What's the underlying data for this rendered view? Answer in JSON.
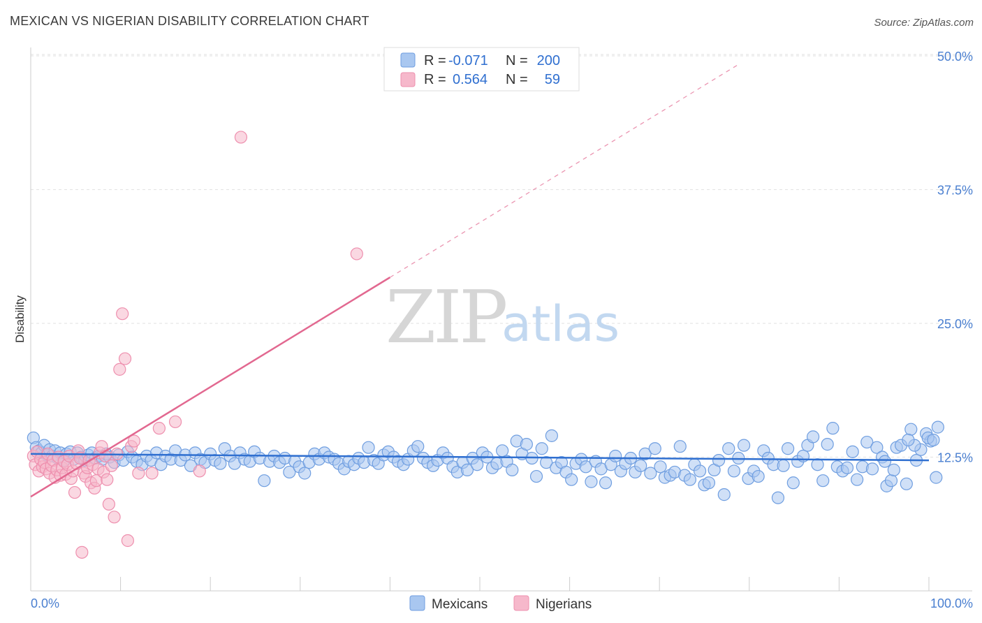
{
  "header": {
    "title": "MEXICAN VS NIGERIAN DISABILITY CORRELATION CHART",
    "source": "Source: ZipAtlas.com"
  },
  "watermark": {
    "part1": "ZIP",
    "part2": "atlas"
  },
  "colors": {
    "mexicans_fill": "#a9c7f0",
    "mexicans_stroke": "#6f9ee0",
    "mexicans_line": "#2f6fd0",
    "nigerians_fill": "#f6b8cb",
    "nigerians_stroke": "#ee8fae",
    "nigerians_line": "#e26890"
  },
  "legend": {
    "rows": [
      {
        "r_label": "R = ",
        "r_value": "-0.071",
        "n_label": "N = ",
        "n_value": "200"
      },
      {
        "r_label": "R = ",
        "r_value": "0.564",
        "n_label": "N = ",
        "n_value": "59"
      }
    ]
  },
  "bottom_legend": {
    "mexicans": "Mexicans",
    "nigerians": "Nigerians"
  },
  "chart_data": {
    "type": "scatter",
    "title": "MEXICAN VS NIGERIAN DISABILITY CORRELATION CHART",
    "xlabel": "",
    "ylabel": "Disability",
    "xlim": [
      0,
      100
    ],
    "ylim": [
      0,
      50
    ],
    "x_tick_labels": [
      "0.0%",
      "100.0%"
    ],
    "y_ticks": [
      12.5,
      25.0,
      37.5,
      50.0
    ],
    "y_tick_labels": [
      "12.5%",
      "25.0%",
      "37.5%",
      "50.0%"
    ],
    "grid": true,
    "legend_position": "top-center",
    "series": [
      {
        "name": "Mexicans",
        "r": -0.071,
        "n": 200,
        "trend": {
          "x": [
            0,
            100
          ],
          "y": [
            12.8,
            12.2
          ]
        },
        "points": [
          [
            0.3,
            14.3
          ],
          [
            0.6,
            13.4
          ],
          [
            0.9,
            13.1
          ],
          [
            1.2,
            12.9
          ],
          [
            1.5,
            13.6
          ],
          [
            1.8,
            12.7
          ],
          [
            2.1,
            13.2
          ],
          [
            2.4,
            12.6
          ],
          [
            2.7,
            13.1
          ],
          [
            3.0,
            12.4
          ],
          [
            3.3,
            12.9
          ],
          [
            3.7,
            12.2
          ],
          [
            4.0,
            12.8
          ],
          [
            4.4,
            13.0
          ],
          [
            4.8,
            12.3
          ],
          [
            5.2,
            12.9
          ],
          [
            5.6,
            12.5
          ],
          [
            6.0,
            12.2
          ],
          [
            6.4,
            12.7
          ],
          [
            6.8,
            12.9
          ],
          [
            7.2,
            12.4
          ],
          [
            7.6,
            12.6
          ],
          [
            8.0,
            12.3
          ],
          [
            8.4,
            12.8
          ],
          [
            8.8,
            12.5
          ],
          [
            9.3,
            12.0
          ],
          [
            9.8,
            12.7
          ],
          [
            10.3,
            12.2
          ],
          [
            10.8,
            13.0
          ],
          [
            11.3,
            12.5
          ],
          [
            11.8,
            12.1
          ],
          [
            12.4,
            11.8
          ],
          [
            12.9,
            12.6
          ],
          [
            13.4,
            12.2
          ],
          [
            14.0,
            12.9
          ],
          [
            14.5,
            11.8
          ],
          [
            15.0,
            12.6
          ],
          [
            15.6,
            12.3
          ],
          [
            16.1,
            13.1
          ],
          [
            16.7,
            12.2
          ],
          [
            17.2,
            12.7
          ],
          [
            17.8,
            11.7
          ],
          [
            18.3,
            12.9
          ],
          [
            18.9,
            12.3
          ],
          [
            19.4,
            12.0
          ],
          [
            20.0,
            12.8
          ],
          [
            20.5,
            12.2
          ],
          [
            21.1,
            11.9
          ],
          [
            21.6,
            13.3
          ],
          [
            22.2,
            12.6
          ],
          [
            22.7,
            11.9
          ],
          [
            23.3,
            12.9
          ],
          [
            23.8,
            12.3
          ],
          [
            24.4,
            12.1
          ],
          [
            24.9,
            13.0
          ],
          [
            25.5,
            12.4
          ],
          [
            26.0,
            10.3
          ],
          [
            26.6,
            12.1
          ],
          [
            27.1,
            12.6
          ],
          [
            27.7,
            12.0
          ],
          [
            28.3,
            12.4
          ],
          [
            28.8,
            11.1
          ],
          [
            29.4,
            12.1
          ],
          [
            29.9,
            11.6
          ],
          [
            30.5,
            11.0
          ],
          [
            31.0,
            12.0
          ],
          [
            31.6,
            12.8
          ],
          [
            32.1,
            12.3
          ],
          [
            32.7,
            12.9
          ],
          [
            33.2,
            12.5
          ],
          [
            33.8,
            12.3
          ],
          [
            34.3,
            11.9
          ],
          [
            34.9,
            11.4
          ],
          [
            35.4,
            12.1
          ],
          [
            36.0,
            11.8
          ],
          [
            36.5,
            12.4
          ],
          [
            37.1,
            12.0
          ],
          [
            37.6,
            13.4
          ],
          [
            38.2,
            12.2
          ],
          [
            38.7,
            11.9
          ],
          [
            39.3,
            12.7
          ],
          [
            39.8,
            13.0
          ],
          [
            40.4,
            12.5
          ],
          [
            40.9,
            12.1
          ],
          [
            41.5,
            11.8
          ],
          [
            42.0,
            12.3
          ],
          [
            42.6,
            13.1
          ],
          [
            43.1,
            13.5
          ],
          [
            43.7,
            12.4
          ],
          [
            44.2,
            12.0
          ],
          [
            44.8,
            11.7
          ],
          [
            45.3,
            12.2
          ],
          [
            45.9,
            12.9
          ],
          [
            46.4,
            12.4
          ],
          [
            47.0,
            11.6
          ],
          [
            47.5,
            11.1
          ],
          [
            48.1,
            12.0
          ],
          [
            48.6,
            11.3
          ],
          [
            49.2,
            12.4
          ],
          [
            49.7,
            11.8
          ],
          [
            50.3,
            12.9
          ],
          [
            50.8,
            12.5
          ],
          [
            51.4,
            11.5
          ],
          [
            51.9,
            11.9
          ],
          [
            52.5,
            13.1
          ],
          [
            53.0,
            12.1
          ],
          [
            53.6,
            11.3
          ],
          [
            54.1,
            14.0
          ],
          [
            54.7,
            12.8
          ],
          [
            55.2,
            13.7
          ],
          [
            55.8,
            12.4
          ],
          [
            56.3,
            10.7
          ],
          [
            56.9,
            13.3
          ],
          [
            57.4,
            12.0
          ],
          [
            58.0,
            14.5
          ],
          [
            58.5,
            11.5
          ],
          [
            59.1,
            12.0
          ],
          [
            59.6,
            11.1
          ],
          [
            60.2,
            10.4
          ],
          [
            60.7,
            11.9
          ],
          [
            61.3,
            12.3
          ],
          [
            61.8,
            11.6
          ],
          [
            62.4,
            10.2
          ],
          [
            62.9,
            12.1
          ],
          [
            63.5,
            11.4
          ],
          [
            64.0,
            10.1
          ],
          [
            64.6,
            11.8
          ],
          [
            65.1,
            12.6
          ],
          [
            65.7,
            11.2
          ],
          [
            66.2,
            11.9
          ],
          [
            66.8,
            12.4
          ],
          [
            67.3,
            11.1
          ],
          [
            67.9,
            11.7
          ],
          [
            68.4,
            12.8
          ],
          [
            69.0,
            11.0
          ],
          [
            69.5,
            13.3
          ],
          [
            70.1,
            11.6
          ],
          [
            70.6,
            10.6
          ],
          [
            71.2,
            10.8
          ],
          [
            71.7,
            11.1
          ],
          [
            72.3,
            13.5
          ],
          [
            72.8,
            10.8
          ],
          [
            73.4,
            10.4
          ],
          [
            73.9,
            11.8
          ],
          [
            74.5,
            11.2
          ],
          [
            75.0,
            9.9
          ],
          [
            75.5,
            10.1
          ],
          [
            76.1,
            11.3
          ],
          [
            76.6,
            12.2
          ],
          [
            77.2,
            9.0
          ],
          [
            77.7,
            13.3
          ],
          [
            78.3,
            11.2
          ],
          [
            78.8,
            12.4
          ],
          [
            79.4,
            13.6
          ],
          [
            79.9,
            10.5
          ],
          [
            80.5,
            11.2
          ],
          [
            81.0,
            10.7
          ],
          [
            81.6,
            13.1
          ],
          [
            82.1,
            12.4
          ],
          [
            82.7,
            11.8
          ],
          [
            83.2,
            8.7
          ],
          [
            83.8,
            11.7
          ],
          [
            84.3,
            13.3
          ],
          [
            84.9,
            10.1
          ],
          [
            85.4,
            12.1
          ],
          [
            86.0,
            12.6
          ],
          [
            86.5,
            13.6
          ],
          [
            87.1,
            14.4
          ],
          [
            87.6,
            11.8
          ],
          [
            88.2,
            10.3
          ],
          [
            88.7,
            13.7
          ],
          [
            89.3,
            15.2
          ],
          [
            89.8,
            11.6
          ],
          [
            90.4,
            11.2
          ],
          [
            90.9,
            11.5
          ],
          [
            91.5,
            13.0
          ],
          [
            92.0,
            10.4
          ],
          [
            92.6,
            11.6
          ],
          [
            93.1,
            13.9
          ],
          [
            93.7,
            11.4
          ],
          [
            94.2,
            13.4
          ],
          [
            94.8,
            12.5
          ],
          [
            95.3,
            9.8
          ],
          [
            95.8,
            10.3
          ],
          [
            96.4,
            13.4
          ],
          [
            96.9,
            13.6
          ],
          [
            97.5,
            10.0
          ],
          [
            98.0,
            15.1
          ],
          [
            98.6,
            12.2
          ],
          [
            99.1,
            13.2
          ],
          [
            99.7,
            14.7
          ],
          [
            100.2,
            14.0
          ],
          [
            99.9,
            14.3
          ],
          [
            100.5,
            14.1
          ],
          [
            101.0,
            15.3
          ],
          [
            100.8,
            10.6
          ],
          [
            98.4,
            13.6
          ],
          [
            97.7,
            14.1
          ],
          [
            96.1,
            11.3
          ],
          [
            95.1,
            12.1
          ]
        ]
      },
      {
        "name": "Nigerians",
        "r": 0.564,
        "n": 59,
        "trend": {
          "x": [
            0,
            40
          ],
          "y": [
            8.8,
            29.3
          ]
        },
        "trend_extension": {
          "x": [
            40,
            79
          ],
          "y": [
            29.3,
            49.3
          ]
        },
        "points": [
          [
            0.3,
            12.6
          ],
          [
            0.5,
            11.8
          ],
          [
            0.7,
            13.0
          ],
          [
            0.9,
            11.2
          ],
          [
            1.1,
            12.3
          ],
          [
            1.3,
            11.6
          ],
          [
            1.5,
            12.0
          ],
          [
            1.7,
            11.4
          ],
          [
            1.9,
            12.8
          ],
          [
            2.1,
            11.0
          ],
          [
            2.3,
            11.7
          ],
          [
            2.5,
            12.2
          ],
          [
            2.7,
            10.6
          ],
          [
            2.9,
            11.3
          ],
          [
            3.1,
            12.5
          ],
          [
            3.3,
            10.8
          ],
          [
            3.5,
            11.5
          ],
          [
            3.7,
            12.1
          ],
          [
            3.9,
            10.9
          ],
          [
            4.1,
            11.8
          ],
          [
            4.3,
            12.6
          ],
          [
            4.5,
            10.5
          ],
          [
            4.7,
            11.2
          ],
          [
            4.9,
            9.2
          ],
          [
            5.1,
            11.9
          ],
          [
            5.3,
            13.1
          ],
          [
            5.5,
            12.4
          ],
          [
            5.7,
            3.6
          ],
          [
            5.9,
            11.0
          ],
          [
            6.1,
            10.7
          ],
          [
            6.3,
            11.5
          ],
          [
            6.5,
            12.2
          ],
          [
            6.7,
            10.1
          ],
          [
            6.9,
            11.8
          ],
          [
            7.1,
            9.6
          ],
          [
            7.3,
            10.3
          ],
          [
            7.5,
            11.4
          ],
          [
            7.7,
            12.9
          ],
          [
            7.9,
            13.5
          ],
          [
            8.1,
            11.1
          ],
          [
            8.3,
            12.6
          ],
          [
            8.5,
            10.4
          ],
          [
            8.7,
            8.1
          ],
          [
            9.0,
            11.7
          ],
          [
            9.3,
            6.9
          ],
          [
            9.6,
            12.8
          ],
          [
            9.9,
            20.7
          ],
          [
            10.2,
            25.9
          ],
          [
            10.5,
            21.7
          ],
          [
            10.8,
            4.7
          ],
          [
            11.2,
            13.5
          ],
          [
            11.5,
            14.0
          ],
          [
            12.0,
            11.0
          ],
          [
            13.5,
            11.0
          ],
          [
            14.3,
            15.2
          ],
          [
            16.1,
            15.8
          ],
          [
            18.8,
            11.2
          ],
          [
            23.4,
            42.4
          ],
          [
            36.3,
            31.5
          ]
        ]
      }
    ]
  }
}
